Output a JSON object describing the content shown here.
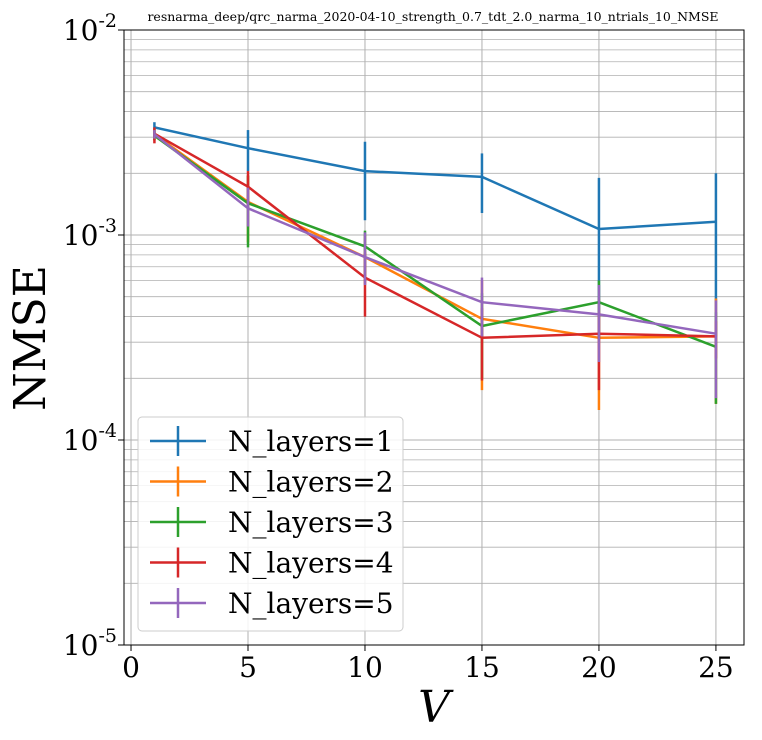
{
  "chart_data": {
    "type": "line",
    "title": "resnarma_deep/qrc_narma_2020-04-10_strength_0.7_tdt_2.0_narma_10_ntrials_10_NMSE",
    "xlabel": "V",
    "ylabel": "NMSE",
    "xlim": [
      -0.3,
      26.2
    ],
    "ylim": [
      1e-05,
      0.01
    ],
    "yscale": "log",
    "grid": true,
    "legend_position": "lower-left",
    "xticks": [
      {
        "value": 0,
        "label": "0"
      },
      {
        "value": 5,
        "label": "5"
      },
      {
        "value": 10,
        "label": "10"
      },
      {
        "value": 15,
        "label": "15"
      },
      {
        "value": 20,
        "label": "20"
      },
      {
        "value": 25,
        "label": "25"
      }
    ],
    "yticks": [
      {
        "value": 0.01,
        "base": "10",
        "exp": "-2"
      },
      {
        "value": 0.001,
        "base": "10",
        "exp": "-3"
      },
      {
        "value": 0.0001,
        "base": "10",
        "exp": "-4"
      },
      {
        "value": 1e-05,
        "base": "10",
        "exp": "-5"
      }
    ],
    "x": [
      1,
      5,
      10,
      15,
      20,
      25
    ],
    "series": [
      {
        "name": "N_layers=1",
        "color": "#1f77b4",
        "values": [
          0.00335,
          0.00265,
          0.00205,
          0.00192,
          0.00107,
          0.00116
        ],
        "err_low": [
          0.00315,
          0.00205,
          0.00118,
          0.00128,
          0.00042,
          0.00032
        ],
        "err_high": [
          0.00355,
          0.00325,
          0.00285,
          0.0025,
          0.0019,
          0.002
        ]
      },
      {
        "name": "N_layers=2",
        "color": "#ff7f0e",
        "values": [
          0.0031,
          0.00145,
          0.00078,
          0.00039,
          0.000315,
          0.00032
        ],
        "err_low": [
          0.0029,
          0.00092,
          0.00058,
          0.000175,
          0.00014,
          0.00015
        ],
        "err_high": [
          0.0033,
          0.00195,
          0.001,
          0.0006,
          0.00049,
          0.00049
        ]
      },
      {
        "name": "N_layers=3",
        "color": "#2ca02c",
        "values": [
          0.00305,
          0.00143,
          0.00088,
          0.00036,
          0.00047,
          0.000285
        ],
        "err_low": [
          0.0029,
          0.00087,
          0.00062,
          0.0002,
          0.00031,
          0.00015
        ],
        "err_high": [
          0.0032,
          0.00195,
          0.00105,
          0.00052,
          0.0006,
          0.00042
        ]
      },
      {
        "name": "N_layers=4",
        "color": "#d62728",
        "values": [
          0.00312,
          0.00172,
          0.00062,
          0.000315,
          0.00033,
          0.00032
        ],
        "err_low": [
          0.0028,
          0.0014,
          0.0004,
          0.000195,
          0.000175,
          0.00025
        ],
        "err_high": [
          0.00335,
          0.00205,
          0.00082,
          0.00044,
          0.00042,
          0.00038
        ]
      },
      {
        "name": "N_layers=5",
        "color": "#9467bd",
        "values": [
          0.0031,
          0.00135,
          0.00078,
          0.00047,
          0.00041,
          0.00033
        ],
        "err_low": [
          0.00295,
          0.0011,
          0.00057,
          0.00032,
          0.00024,
          0.00016
        ],
        "err_high": [
          0.00325,
          0.0017,
          0.00103,
          0.00062,
          0.00057,
          0.00048
        ]
      }
    ]
  }
}
